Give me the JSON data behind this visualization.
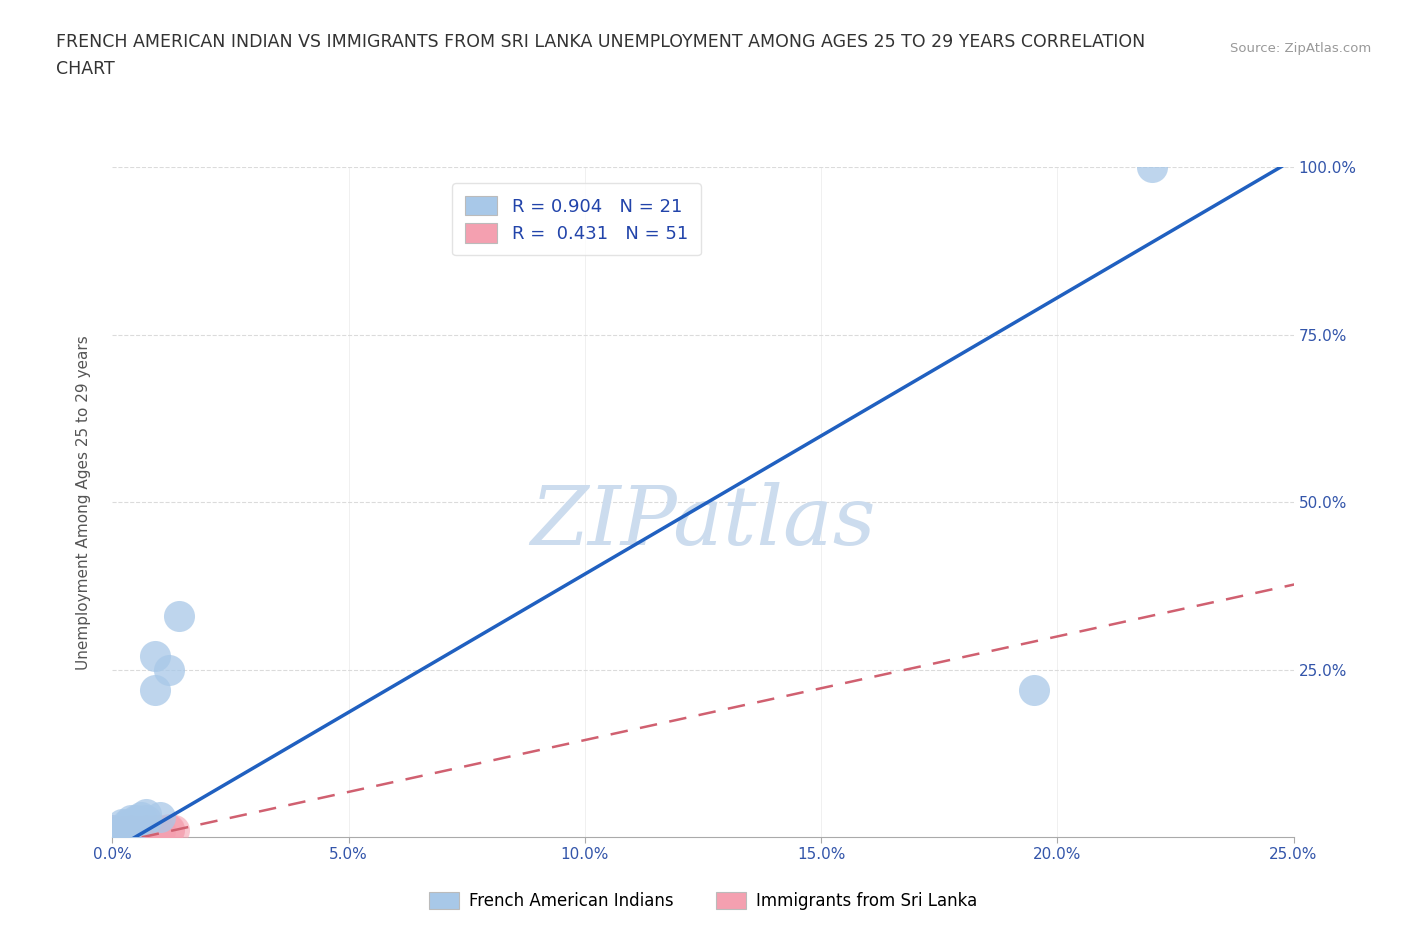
{
  "title_line1": "FRENCH AMERICAN INDIAN VS IMMIGRANTS FROM SRI LANKA UNEMPLOYMENT AMONG AGES 25 TO 29 YEARS CORRELATION",
  "title_line2": "CHART",
  "source": "Source: ZipAtlas.com",
  "ylabel": "Unemployment Among Ages 25 to 29 years",
  "xlim": [
    0,
    0.25
  ],
  "ylim": [
    0,
    1.0
  ],
  "xticks": [
    0.0,
    0.05,
    0.1,
    0.15,
    0.2,
    0.25
  ],
  "yticks": [
    0.0,
    0.25,
    0.5,
    0.75,
    1.0
  ],
  "xticklabels": [
    "0.0%",
    "5.0%",
    "10.0%",
    "15.0%",
    "20.0%",
    "25.0%"
  ],
  "yticklabels_right": [
    "",
    "25.0%",
    "50.0%",
    "75.0%",
    "100.0%"
  ],
  "blue_R": 0.904,
  "blue_N": 21,
  "pink_R": 0.431,
  "pink_N": 51,
  "blue_color": "#a8c8e8",
  "pink_color": "#f4a0b0",
  "blue_line_color": "#2060c0",
  "pink_line_color": "#d06070",
  "watermark": "ZIPatlas",
  "watermark_color": "#ccdcee",
  "legend_label_blue": "French American Indians",
  "legend_label_pink": "Immigrants from Sri Lanka",
  "blue_line_x0": 0.0,
  "blue_line_y0": -0.02,
  "blue_line_x1": 0.252,
  "blue_line_y1": 1.02,
  "pink_line_x0": 0.0,
  "pink_line_y0": -0.01,
  "pink_line_x1": 0.252,
  "pink_line_y1": 0.38,
  "blue_points_x": [
    0.0,
    0.0,
    0.001,
    0.002,
    0.002,
    0.003,
    0.003,
    0.004,
    0.004,
    0.005,
    0.005,
    0.006,
    0.007,
    0.007,
    0.009,
    0.009,
    0.01,
    0.012,
    0.014,
    0.195,
    0.22
  ],
  "blue_points_y": [
    0.005,
    0.01,
    0.005,
    0.01,
    0.02,
    0.015,
    0.02,
    0.02,
    0.025,
    0.02,
    0.025,
    0.03,
    0.025,
    0.035,
    0.22,
    0.27,
    0.03,
    0.25,
    0.33,
    0.22,
    1.0
  ],
  "pink_points_x": [
    0.0,
    0.0,
    0.0,
    0.0,
    0.0,
    0.0,
    0.0,
    0.0,
    0.0,
    0.0,
    0.001,
    0.001,
    0.001,
    0.001,
    0.001,
    0.002,
    0.002,
    0.002,
    0.002,
    0.002,
    0.002,
    0.003,
    0.003,
    0.003,
    0.003,
    0.003,
    0.004,
    0.004,
    0.004,
    0.004,
    0.004,
    0.005,
    0.005,
    0.005,
    0.005,
    0.006,
    0.006,
    0.006,
    0.007,
    0.007,
    0.007,
    0.007,
    0.008,
    0.008,
    0.009,
    0.009,
    0.01,
    0.01,
    0.012,
    0.012,
    0.013
  ],
  "pink_points_y": [
    0.0,
    0.001,
    0.002,
    0.003,
    0.004,
    0.005,
    0.006,
    0.007,
    0.008,
    0.01,
    0.001,
    0.002,
    0.003,
    0.005,
    0.007,
    0.002,
    0.003,
    0.004,
    0.006,
    0.007,
    0.009,
    0.003,
    0.004,
    0.005,
    0.007,
    0.008,
    0.004,
    0.005,
    0.006,
    0.008,
    0.01,
    0.005,
    0.006,
    0.007,
    0.009,
    0.005,
    0.007,
    0.009,
    0.006,
    0.007,
    0.008,
    0.01,
    0.007,
    0.009,
    0.008,
    0.01,
    0.009,
    0.011,
    0.01,
    0.012,
    0.011
  ]
}
